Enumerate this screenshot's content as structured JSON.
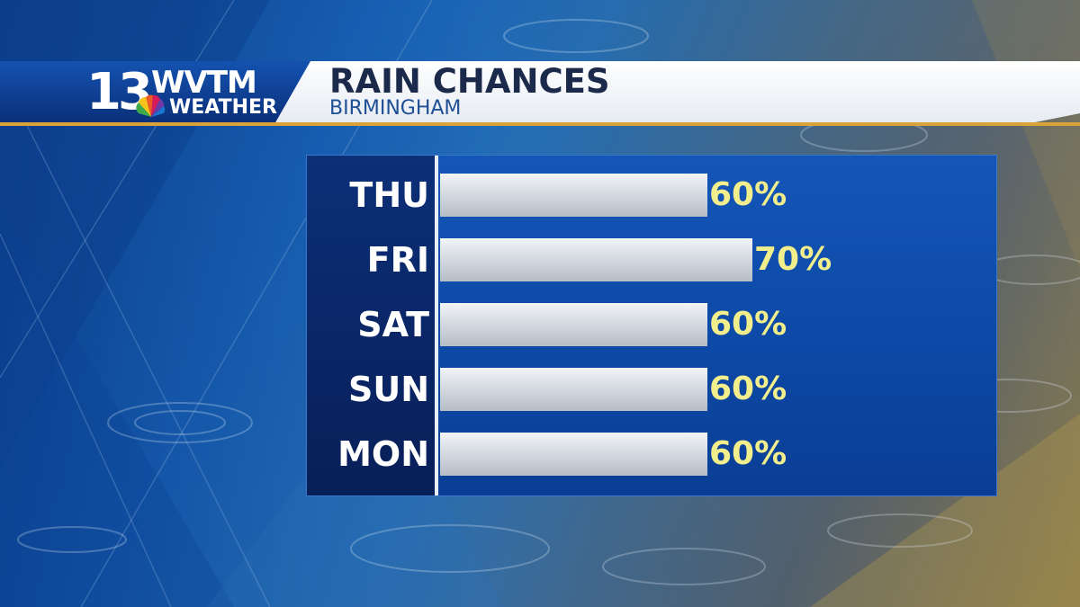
{
  "header": {
    "station_number": "13",
    "station_call": "WVTM",
    "station_brand": "WEATHER",
    "title": "RAIN CHANCES",
    "subtitle": "BIRMINGHAM"
  },
  "colors": {
    "header_white": "#ffffff",
    "logo_blue": "#0d3f92",
    "gold_rule": "#d9a33a",
    "panel_blue": "#0d4aa8",
    "label_navy": "#0a276a",
    "bar_silver": "#d6dbe2",
    "value_yellow": "#f3ee8c"
  },
  "chart_data": {
    "type": "bar",
    "orientation": "horizontal",
    "title": "RAIN CHANCES",
    "subtitle": "BIRMINGHAM",
    "categories": [
      "THU",
      "FRI",
      "SAT",
      "SUN",
      "MON"
    ],
    "values": [
      60,
      70,
      60,
      60,
      60
    ],
    "value_labels": [
      "60%",
      "70%",
      "60%",
      "60%",
      "60%"
    ],
    "xlim": [
      0,
      100
    ],
    "grid": false,
    "legend": "none"
  }
}
